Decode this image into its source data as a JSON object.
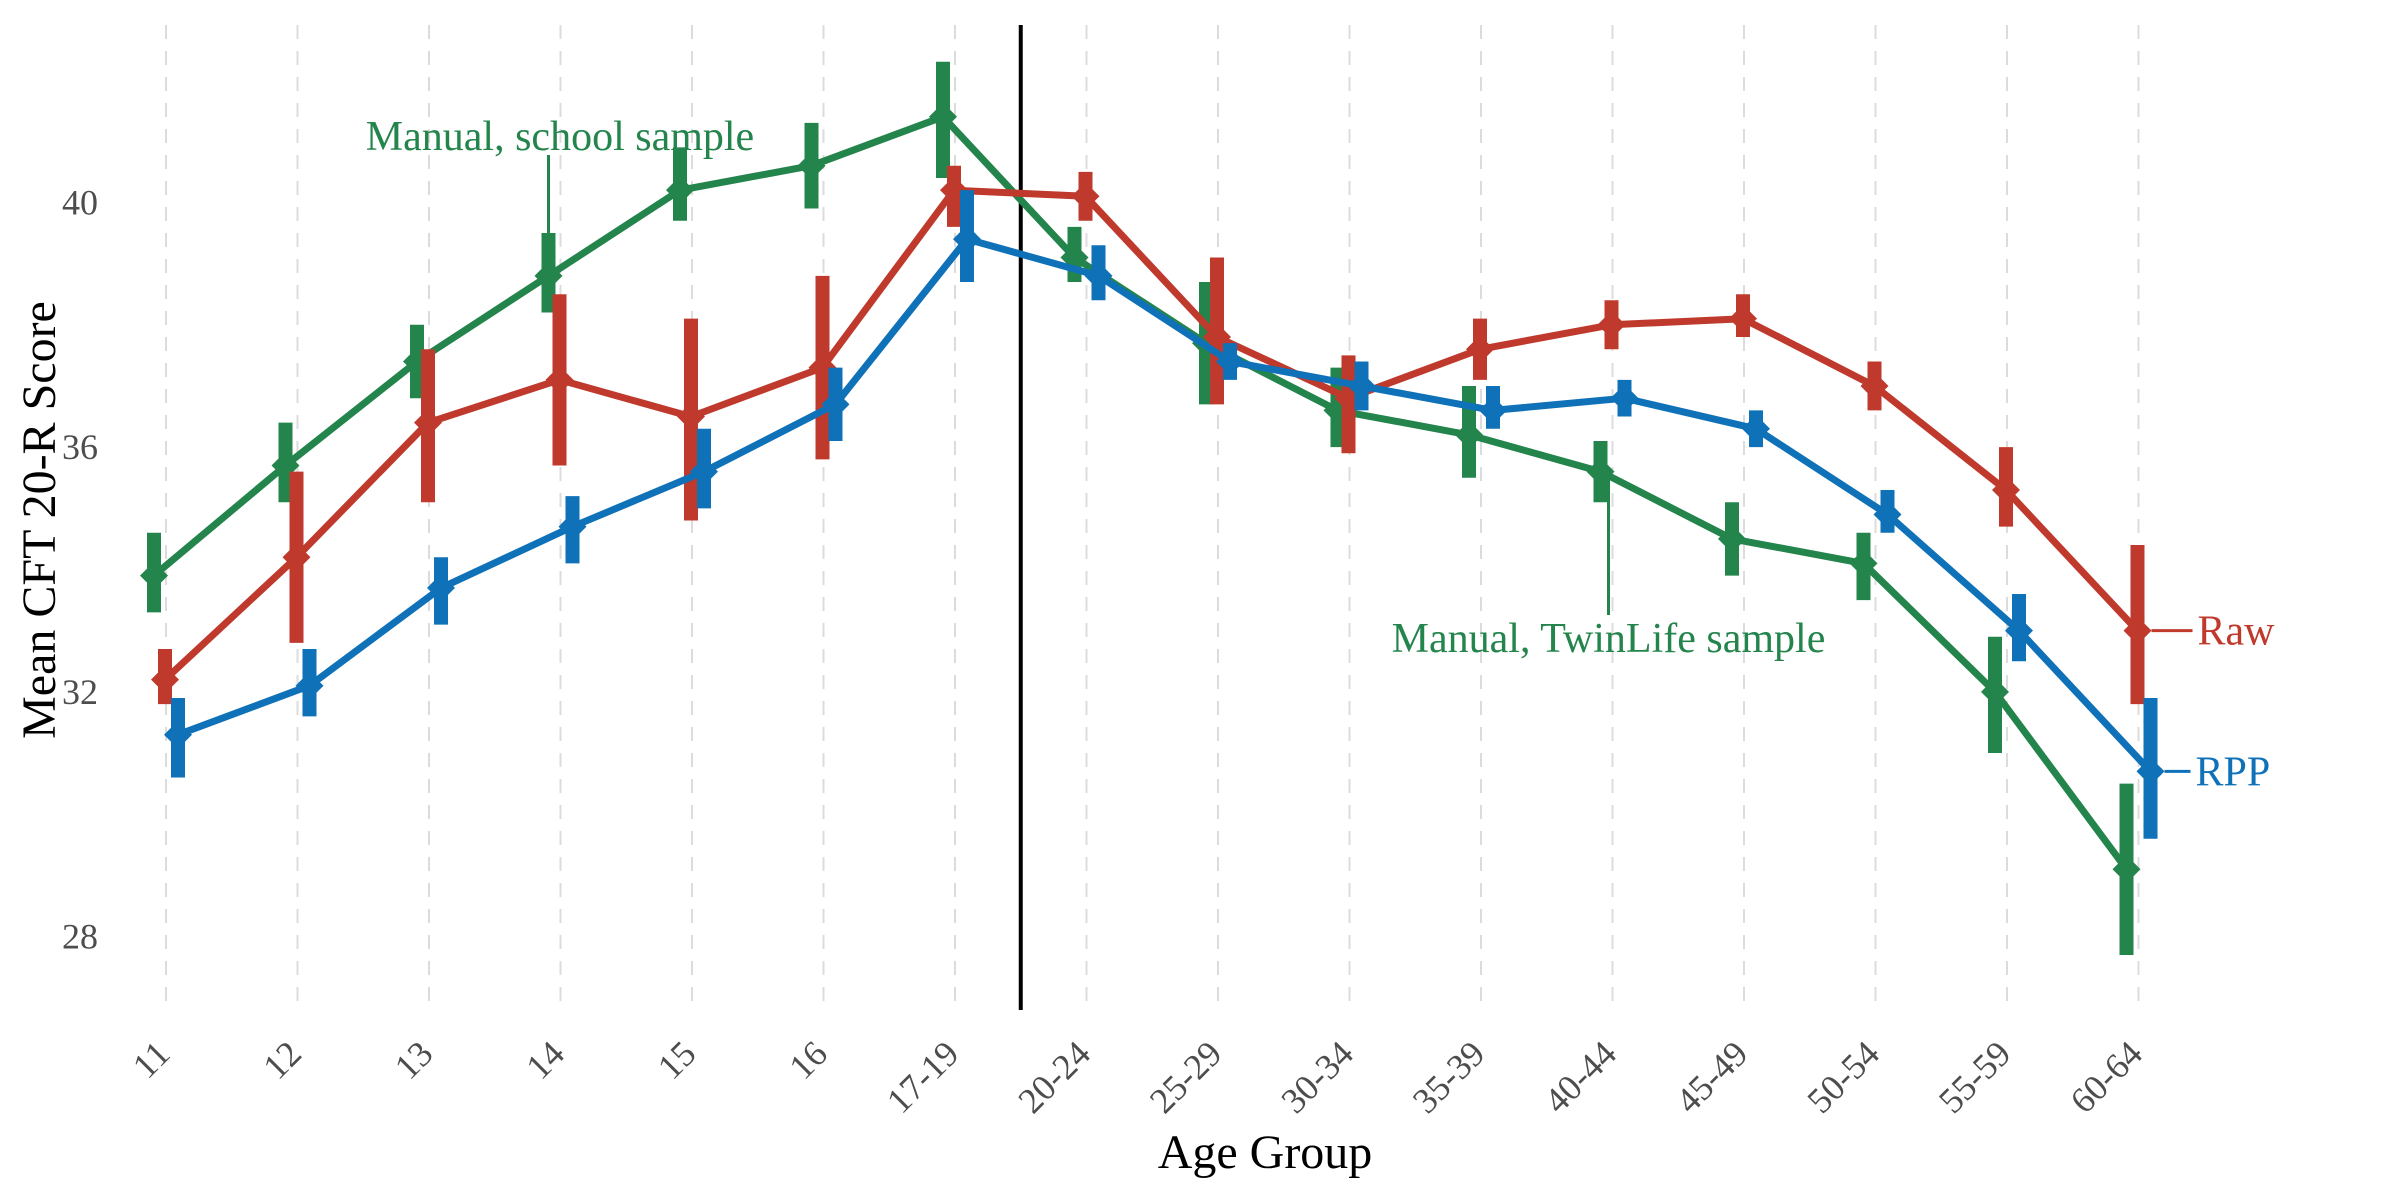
{
  "chart_data": {
    "type": "line",
    "title": "",
    "xlabel": "Age Group",
    "ylabel": "Mean CFT 20-R Score",
    "categories": [
      "11",
      "12",
      "13",
      "14",
      "15",
      "16",
      "17-19",
      "20-24",
      "25-29",
      "30-34",
      "35-39",
      "40-44",
      "45-49",
      "50-54",
      "55-59",
      "60-64"
    ],
    "ylim": [
      26.8,
      42.9
    ],
    "yticks": [
      28,
      32,
      36,
      40
    ],
    "grid": {
      "vertical_dashed": true,
      "horizontal": false
    },
    "divider_after_category": "17-19",
    "series": [
      {
        "key": "manual",
        "color": "#23844c",
        "segments": [
          {
            "name": "Manual, school sample",
            "indices": [
              0,
              1,
              2,
              3,
              4,
              5,
              6
            ],
            "values": [
              33.9,
              35.7,
              37.4,
              38.8,
              40.2,
              40.6,
              41.4
            ],
            "ci": [
              [
                33.3,
                34.6
              ],
              [
                35.1,
                36.4
              ],
              [
                36.8,
                38.0
              ],
              [
                38.2,
                39.5
              ],
              [
                39.7,
                40.9
              ],
              [
                39.9,
                41.3
              ],
              [
                40.4,
                42.3
              ]
            ]
          },
          {
            "name": "Manual, TwinLife sample",
            "indices": [
              7,
              8,
              9,
              10,
              11,
              12,
              13,
              14,
              15
            ],
            "values": [
              39.1,
              37.7,
              36.6,
              36.2,
              35.6,
              34.5,
              34.1,
              32.0,
              29.1
            ],
            "ci": [
              [
                38.7,
                39.6
              ],
              [
                36.7,
                38.7
              ],
              [
                36.0,
                37.3
              ],
              [
                35.5,
                37.0
              ],
              [
                35.1,
                36.1
              ],
              [
                33.9,
                35.1
              ],
              [
                33.5,
                34.6
              ],
              [
                31.0,
                32.9
              ],
              [
                27.7,
                30.5
              ]
            ]
          }
        ]
      },
      {
        "key": "raw",
        "name": "Raw",
        "color": "#bf3a2c",
        "indices": [
          0,
          1,
          2,
          3,
          4,
          5,
          6,
          7,
          8,
          9,
          10,
          11,
          12,
          13,
          14,
          15
        ],
        "values": [
          32.2,
          34.2,
          36.4,
          37.1,
          36.5,
          37.3,
          40.2,
          40.1,
          37.8,
          36.8,
          37.6,
          38.0,
          38.1,
          37.0,
          35.3,
          33.0
        ],
        "ci": [
          [
            31.8,
            32.7
          ],
          [
            32.8,
            35.6
          ],
          [
            35.1,
            37.6
          ],
          [
            35.7,
            38.5
          ],
          [
            34.8,
            38.1
          ],
          [
            35.8,
            38.8
          ],
          [
            39.6,
            40.6
          ],
          [
            39.7,
            40.5
          ],
          [
            36.7,
            39.1
          ],
          [
            35.9,
            37.5
          ],
          [
            37.1,
            38.1
          ],
          [
            37.6,
            38.4
          ],
          [
            37.8,
            38.5
          ],
          [
            36.6,
            37.4
          ],
          [
            34.7,
            36.0
          ],
          [
            31.8,
            34.4
          ]
        ]
      },
      {
        "key": "rpp",
        "name": "RPP",
        "color": "#0f71b8",
        "indices": [
          0,
          1,
          2,
          3,
          4,
          5,
          6,
          7,
          8,
          9,
          10,
          11,
          12,
          13,
          14,
          15
        ],
        "values": [
          31.3,
          32.1,
          33.7,
          34.7,
          35.6,
          36.7,
          39.4,
          38.8,
          37.4,
          37.0,
          36.6,
          36.8,
          36.3,
          34.9,
          33.0,
          30.7
        ],
        "ci": [
          [
            30.6,
            31.9
          ],
          [
            31.6,
            32.7
          ],
          [
            33.1,
            34.2
          ],
          [
            34.1,
            35.2
          ],
          [
            35.0,
            36.3
          ],
          [
            36.1,
            37.3
          ],
          [
            38.7,
            40.2
          ],
          [
            38.4,
            39.3
          ],
          [
            37.1,
            37.7
          ],
          [
            36.6,
            37.4
          ],
          [
            36.3,
            37.0
          ],
          [
            36.5,
            37.1
          ],
          [
            36.0,
            36.6
          ],
          [
            34.6,
            35.3
          ],
          [
            32.5,
            33.6
          ],
          [
            29.6,
            31.9
          ]
        ]
      }
    ],
    "annotations": [
      {
        "text": "Manual, school sample",
        "color": "#23844c"
      },
      {
        "text": "Manual, TwinLife sample",
        "color": "#23844c"
      },
      {
        "text": "Raw",
        "color": "#bf3a2c"
      },
      {
        "text": "RPP",
        "color": "#0f71b8"
      }
    ]
  }
}
